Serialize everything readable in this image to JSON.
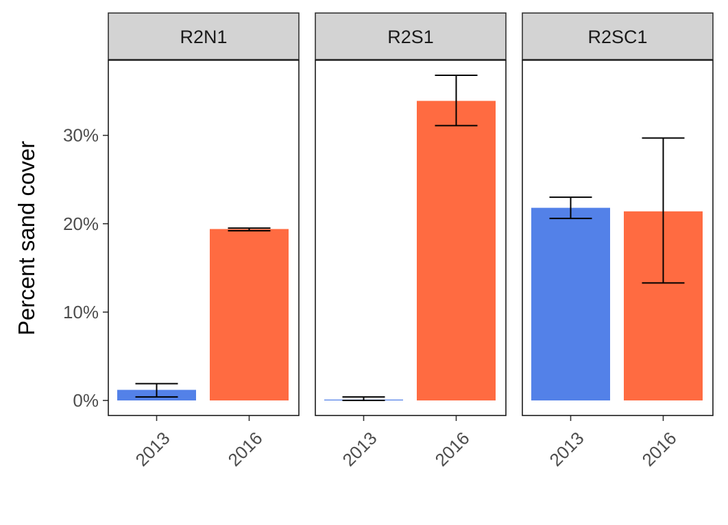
{
  "chart_data": {
    "type": "bar",
    "ylabel": "Percent sand cover",
    "xlabel": "",
    "ylim": [
      -0.017,
      0.385
    ],
    "yticks": [
      0,
      0.1,
      0.2,
      0.3
    ],
    "ytick_labels": [
      "0%",
      "10%",
      "20%",
      "30%"
    ],
    "categories": [
      "2013",
      "2016"
    ],
    "colors": {
      "2013": "#5381E8",
      "2016": "#FF6B41"
    },
    "panels": [
      {
        "name": "R2N1",
        "bars": [
          {
            "year": "2013",
            "value": 0.012,
            "err_low": 0.004,
            "err_high": 0.019
          },
          {
            "year": "2016",
            "value": 0.194,
            "err_low": 0.192,
            "err_high": 0.195
          }
        ]
      },
      {
        "name": "R2S1",
        "bars": [
          {
            "year": "2013",
            "value": 0.001,
            "err_low": 0.0,
            "err_high": 0.004
          },
          {
            "year": "2016",
            "value": 0.339,
            "err_low": 0.311,
            "err_high": 0.368
          }
        ]
      },
      {
        "name": "R2SC1",
        "bars": [
          {
            "year": "2013",
            "value": 0.218,
            "err_low": 0.206,
            "err_high": 0.23
          },
          {
            "year": "2016",
            "value": 0.214,
            "err_low": 0.133,
            "err_high": 0.297
          }
        ]
      }
    ]
  }
}
